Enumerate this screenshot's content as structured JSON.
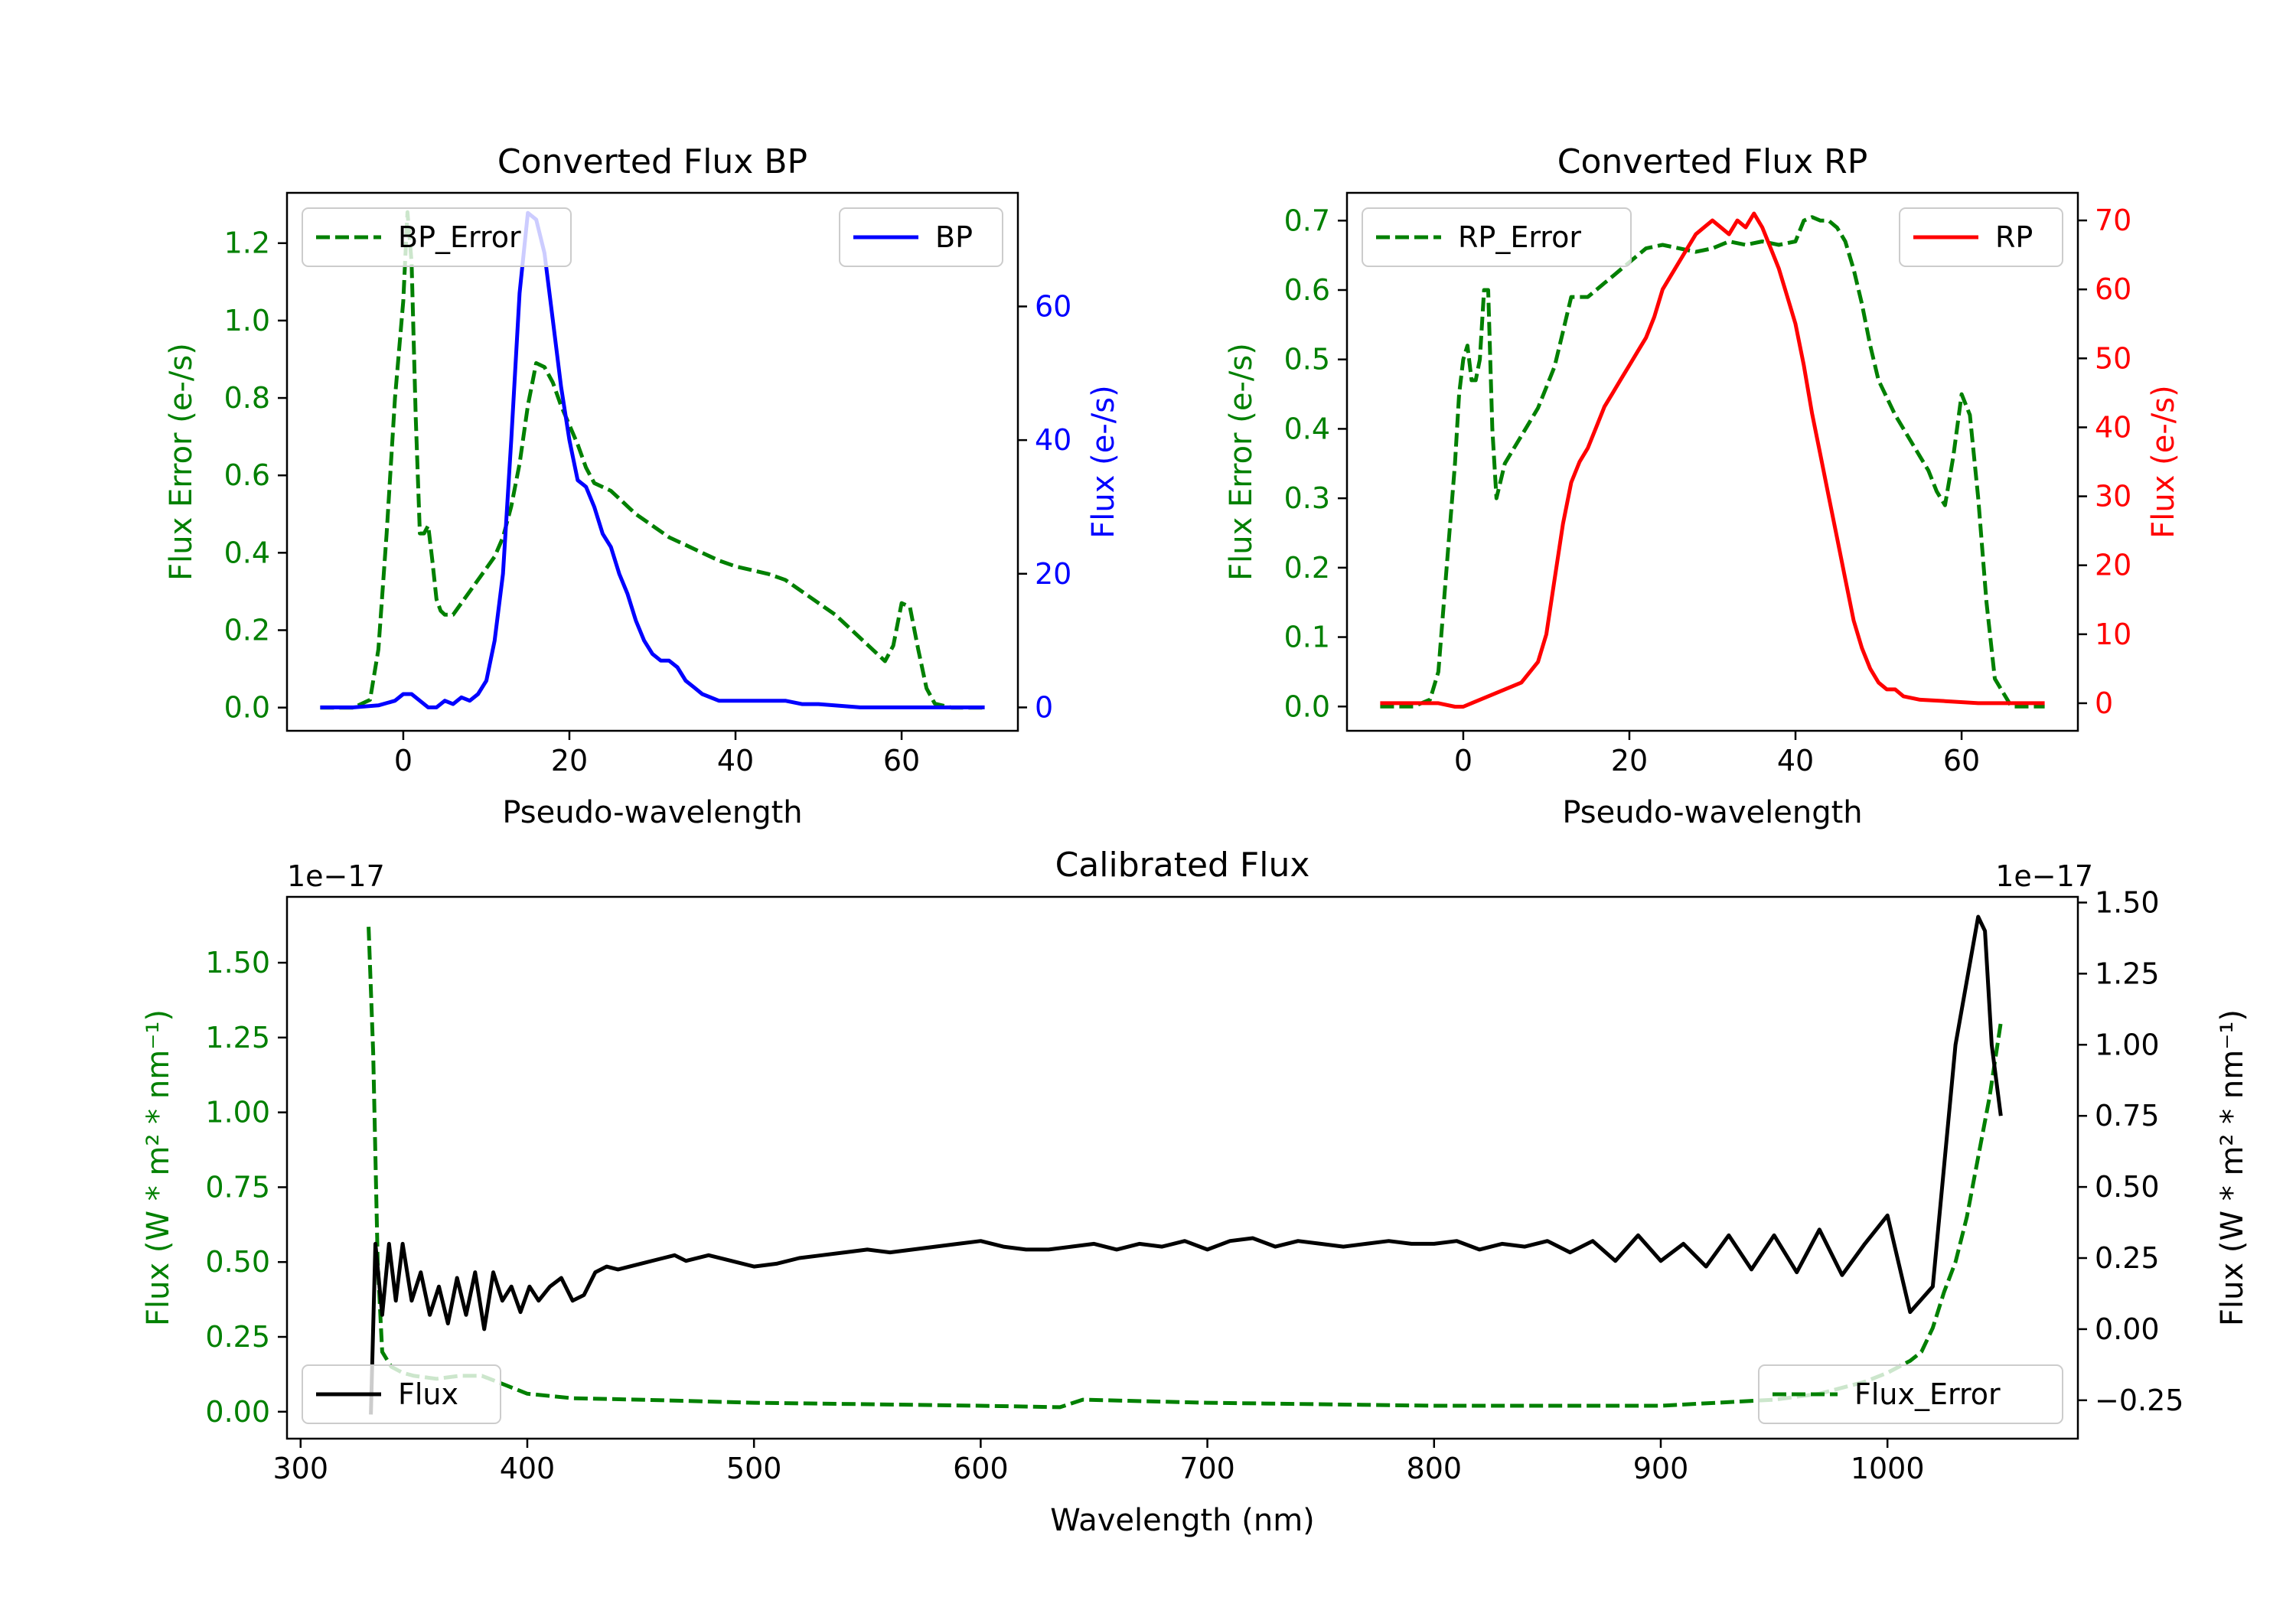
{
  "chart_data": [
    {
      "type": "line",
      "title": "Converted Flux BP",
      "xlabel": "Pseudo-wavelength",
      "ylabel_left": "Flux Error (e-/s)",
      "ylabel_right": "Flux (e-/s)",
      "xlim": [
        -14,
        74
      ],
      "ylim_left": [
        -0.06,
        1.33
      ],
      "ylim_right": [
        -3.5,
        77
      ],
      "xticks": [
        0,
        20,
        40,
        60
      ],
      "yticks_left": [
        0.0,
        0.2,
        0.4,
        0.6,
        0.8,
        1.0,
        1.2
      ],
      "yticks_left_labels": [
        "0.0",
        "0.2",
        "0.4",
        "0.6",
        "0.8",
        "1.0",
        "1.2"
      ],
      "yticks_right": [
        0,
        20,
        40,
        60
      ],
      "yticks_right_labels": [
        "0",
        "20",
        "40",
        "60"
      ],
      "colors": {
        "left": "#008000",
        "right": "#0000ff"
      },
      "series": [
        {
          "name": "BP_Error",
          "axis": "left",
          "color": "#008000",
          "style": "dashed",
          "x": [
            -10,
            -6,
            -4,
            -3,
            -2,
            -1,
            0,
            0.5,
            1,
            1.5,
            2,
            2.5,
            3,
            3.5,
            4,
            4.5,
            5,
            6,
            7,
            8,
            9,
            10,
            11,
            12,
            13,
            14,
            15,
            16,
            17,
            18,
            19,
            20,
            21,
            22,
            23,
            24,
            25,
            26,
            27,
            28,
            30,
            32,
            34,
            36,
            38,
            40,
            42,
            44,
            46,
            48,
            50,
            52,
            54,
            56,
            58,
            59,
            60,
            61,
            62,
            63,
            64,
            66,
            68,
            70
          ],
          "y": [
            0.0,
            0.0,
            0.02,
            0.15,
            0.45,
            0.8,
            1.05,
            1.28,
            1.15,
            0.75,
            0.45,
            0.45,
            0.47,
            0.38,
            0.28,
            0.25,
            0.24,
            0.24,
            0.27,
            0.3,
            0.33,
            0.36,
            0.39,
            0.44,
            0.52,
            0.63,
            0.78,
            0.89,
            0.88,
            0.84,
            0.78,
            0.73,
            0.68,
            0.62,
            0.58,
            0.57,
            0.56,
            0.54,
            0.52,
            0.5,
            0.47,
            0.44,
            0.42,
            0.4,
            0.38,
            0.365,
            0.355,
            0.345,
            0.33,
            0.3,
            0.27,
            0.24,
            0.2,
            0.16,
            0.12,
            0.16,
            0.27,
            0.26,
            0.15,
            0.05,
            0.01,
            0.0,
            0.0,
            0.0
          ]
        },
        {
          "name": "BP",
          "axis": "right",
          "color": "#0000ff",
          "style": "solid",
          "x": [
            -10,
            -6,
            -3,
            -1,
            0,
            1,
            2,
            3,
            4,
            5,
            6,
            7,
            8,
            9,
            10,
            11,
            12,
            13,
            14,
            15,
            16,
            17,
            18,
            19,
            20,
            21,
            22,
            23,
            24,
            25,
            26,
            27,
            28,
            29,
            30,
            31,
            32,
            33,
            34,
            35,
            36,
            38,
            40,
            42,
            44,
            46,
            48,
            50,
            55,
            60,
            65,
            70
          ],
          "y": [
            0,
            0,
            0.3,
            1,
            2,
            2,
            1,
            0,
            0,
            1,
            0.5,
            1.5,
            1,
            2,
            4,
            10,
            20,
            40,
            62,
            74,
            73,
            68,
            58,
            48,
            40,
            34,
            33,
            30,
            26,
            24,
            20,
            17,
            13,
            10,
            8,
            7,
            7,
            6,
            4,
            3,
            2,
            1,
            1,
            1,
            1,
            1,
            0.5,
            0.5,
            0,
            0,
            0,
            0
          ]
        }
      ],
      "legends": [
        {
          "position": "upper-left",
          "label": "BP_Error",
          "style": "dashed",
          "color": "#008000"
        },
        {
          "position": "upper-right",
          "label": "BP",
          "style": "solid",
          "color": "#0000ff"
        }
      ]
    },
    {
      "type": "line",
      "title": "Converted Flux RP",
      "xlabel": "Pseudo-wavelength",
      "ylabel_left": "Flux Error (e-/s)",
      "ylabel_right": "Flux (e-/s)",
      "xlim": [
        -14,
        74
      ],
      "ylim_left": [
        -0.035,
        0.74
      ],
      "ylim_right": [
        -4,
        74
      ],
      "xticks": [
        0,
        20,
        40,
        60
      ],
      "yticks_left": [
        0.0,
        0.1,
        0.2,
        0.3,
        0.4,
        0.5,
        0.6,
        0.7
      ],
      "yticks_left_labels": [
        "0.0",
        "0.1",
        "0.2",
        "0.3",
        "0.4",
        "0.5",
        "0.6",
        "0.7"
      ],
      "yticks_right": [
        0,
        10,
        20,
        30,
        40,
        50,
        60,
        70
      ],
      "yticks_right_labels": [
        "0",
        "10",
        "20",
        "30",
        "40",
        "50",
        "60",
        "70"
      ],
      "colors": {
        "left": "#008000",
        "right": "#ff0000"
      },
      "series": [
        {
          "name": "RP_Error",
          "axis": "left",
          "color": "#008000",
          "style": "dashed",
          "x": [
            -10,
            -6,
            -4,
            -3,
            -2,
            -1,
            -0.5,
            0,
            0.5,
            1,
            1.5,
            2,
            2.5,
            3,
            3.5,
            4,
            5,
            6,
            7,
            8,
            9,
            10,
            11,
            12,
            13,
            14,
            15,
            16,
            17,
            18,
            19,
            20,
            22,
            24,
            26,
            28,
            30,
            32,
            34,
            36,
            38,
            40,
            41,
            42,
            43,
            44,
            45,
            46,
            47,
            48,
            49,
            50,
            52,
            54,
            55,
            56,
            57,
            58,
            59,
            60,
            61,
            62,
            63,
            64,
            66,
            68,
            70
          ],
          "y": [
            0.0,
            0.0,
            0.01,
            0.05,
            0.2,
            0.35,
            0.45,
            0.5,
            0.52,
            0.47,
            0.47,
            0.5,
            0.6,
            0.6,
            0.4,
            0.3,
            0.35,
            0.37,
            0.39,
            0.41,
            0.43,
            0.46,
            0.49,
            0.54,
            0.59,
            0.59,
            0.59,
            0.6,
            0.61,
            0.62,
            0.63,
            0.64,
            0.66,
            0.665,
            0.66,
            0.655,
            0.66,
            0.67,
            0.665,
            0.67,
            0.665,
            0.67,
            0.7,
            0.705,
            0.7,
            0.7,
            0.69,
            0.67,
            0.63,
            0.58,
            0.52,
            0.47,
            0.42,
            0.38,
            0.36,
            0.34,
            0.31,
            0.29,
            0.36,
            0.45,
            0.42,
            0.3,
            0.15,
            0.04,
            0.0,
            0.0,
            0.0
          ]
        },
        {
          "name": "RP",
          "axis": "right",
          "color": "#ff0000",
          "style": "solid",
          "x": [
            -10,
            -6,
            -3,
            -1,
            0,
            1,
            3,
            5,
            7,
            9,
            10,
            11,
            12,
            13,
            14,
            15,
            16,
            17,
            18,
            19,
            20,
            21,
            22,
            23,
            24,
            25,
            26,
            27,
            28,
            29,
            30,
            31,
            32,
            33,
            34,
            35,
            36,
            37,
            38,
            39,
            40,
            41,
            42,
            43,
            44,
            45,
            46,
            47,
            48,
            49,
            50,
            51,
            52,
            53,
            55,
            58,
            62,
            66,
            70
          ],
          "y": [
            0,
            0,
            0,
            -0.5,
            -0.5,
            0,
            1,
            2,
            3,
            6,
            10,
            18,
            26,
            32,
            35,
            37,
            40,
            43,
            45,
            47,
            49,
            51,
            53,
            56,
            60,
            62,
            64,
            66,
            68,
            69,
            70,
            69,
            68,
            70,
            69,
            71,
            69,
            66,
            63,
            59,
            55,
            49,
            42,
            36,
            30,
            24,
            18,
            12,
            8,
            5,
            3,
            2,
            2,
            1,
            0.5,
            0.3,
            0,
            0,
            0
          ]
        }
      ],
      "legends": [
        {
          "position": "upper-left",
          "label": "RP_Error",
          "style": "dashed",
          "color": "#008000"
        },
        {
          "position": "upper-right",
          "label": "RP",
          "style": "solid",
          "color": "#ff0000"
        }
      ]
    },
    {
      "type": "line",
      "title": "Calibrated Flux",
      "xlabel": "Wavelength (nm)",
      "ylabel_left": "Flux (W * m² * nm⁻¹)",
      "ylabel_right": "Flux (W * m² * nm⁻¹)",
      "offset_left": "1e−17",
      "offset_right": "1e−17",
      "xlim": [
        294,
        1084
      ],
      "ylim_left": [
        -0.09,
        1.72
      ],
      "ylim_right": [
        -0.385,
        1.52
      ],
      "xticks": [
        300,
        400,
        500,
        600,
        700,
        800,
        900,
        1000
      ],
      "yticks_left": [
        0.0,
        0.25,
        0.5,
        0.75,
        1.0,
        1.25,
        1.5
      ],
      "yticks_left_labels": [
        "0.00",
        "0.25",
        "0.50",
        "0.75",
        "1.00",
        "1.25",
        "1.50"
      ],
      "yticks_right": [
        -0.25,
        0.0,
        0.25,
        0.5,
        0.75,
        1.0,
        1.25,
        1.5
      ],
      "yticks_right_labels": [
        "−0.25",
        "0.00",
        "0.25",
        "0.50",
        "0.75",
        "1.00",
        "1.25",
        "1.50"
      ],
      "colors": {
        "left": "#008000",
        "right": "#000000"
      },
      "series": [
        {
          "name": "Flux_Error",
          "axis": "left",
          "color": "#008000",
          "style": "dashed",
          "x": [
            330,
            332,
            334,
            336,
            340,
            345,
            350,
            360,
            370,
            380,
            390,
            400,
            420,
            450,
            500,
            550,
            600,
            635,
            645,
            700,
            800,
            900,
            950,
            970,
            990,
            1000,
            1010,
            1015,
            1020,
            1025,
            1030,
            1035,
            1040,
            1045,
            1050
          ],
          "y": [
            1.62,
            1.2,
            0.5,
            0.2,
            0.15,
            0.13,
            0.12,
            0.11,
            0.12,
            0.12,
            0.09,
            0.06,
            0.045,
            0.04,
            0.03,
            0.025,
            0.02,
            0.015,
            0.04,
            0.03,
            0.02,
            0.02,
            0.04,
            0.06,
            0.1,
            0.13,
            0.17,
            0.2,
            0.28,
            0.4,
            0.5,
            0.65,
            0.85,
            1.05,
            1.3
          ]
        },
        {
          "name": "Flux",
          "axis": "right",
          "color": "#000000",
          "style": "solid",
          "x": [
            331,
            333,
            336,
            339,
            342,
            345,
            349,
            353,
            357,
            361,
            365,
            369,
            373,
            377,
            381,
            385,
            389,
            393,
            397,
            401,
            405,
            410,
            415,
            420,
            425,
            430,
            435,
            440,
            450,
            460,
            465,
            470,
            480,
            490,
            500,
            510,
            520,
            530,
            540,
            550,
            560,
            570,
            580,
            590,
            600,
            610,
            620,
            630,
            640,
            650,
            660,
            670,
            680,
            690,
            700,
            710,
            720,
            730,
            740,
            750,
            760,
            770,
            780,
            790,
            800,
            810,
            820,
            830,
            840,
            850,
            860,
            870,
            880,
            890,
            900,
            910,
            920,
            930,
            940,
            950,
            960,
            970,
            980,
            990,
            1000,
            1010,
            1020,
            1030,
            1040,
            1043,
            1046,
            1050
          ],
          "y": [
            -0.3,
            0.3,
            0.05,
            0.3,
            0.1,
            0.3,
            0.1,
            0.2,
            0.05,
            0.15,
            0.02,
            0.18,
            0.05,
            0.2,
            0.0,
            0.2,
            0.1,
            0.15,
            0.06,
            0.15,
            0.1,
            0.15,
            0.18,
            0.1,
            0.12,
            0.2,
            0.22,
            0.21,
            0.23,
            0.25,
            0.26,
            0.24,
            0.26,
            0.24,
            0.22,
            0.23,
            0.25,
            0.26,
            0.27,
            0.28,
            0.27,
            0.28,
            0.29,
            0.3,
            0.31,
            0.29,
            0.28,
            0.28,
            0.29,
            0.3,
            0.28,
            0.3,
            0.29,
            0.31,
            0.28,
            0.31,
            0.32,
            0.29,
            0.31,
            0.3,
            0.29,
            0.3,
            0.31,
            0.3,
            0.3,
            0.31,
            0.28,
            0.3,
            0.29,
            0.31,
            0.27,
            0.31,
            0.24,
            0.33,
            0.24,
            0.3,
            0.22,
            0.33,
            0.21,
            0.33,
            0.2,
            0.35,
            0.19,
            0.3,
            0.4,
            0.06,
            0.15,
            1.0,
            1.45,
            1.4,
            1.0,
            0.75
          ]
        }
      ],
      "legends": [
        {
          "position": "lower-left",
          "label": "Flux",
          "style": "solid",
          "color": "#000000"
        },
        {
          "position": "lower-right",
          "label": "Flux_Error",
          "style": "dashed",
          "color": "#008000"
        }
      ]
    }
  ]
}
